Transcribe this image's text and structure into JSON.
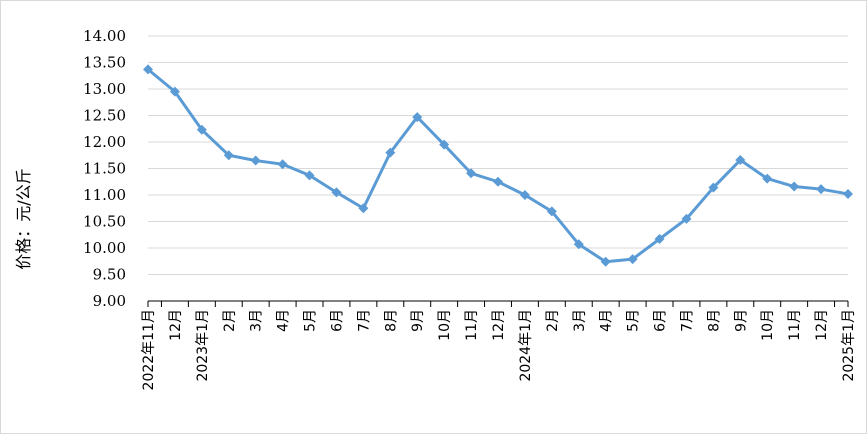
{
  "chart_data": {
    "type": "line",
    "title": "",
    "xlabel": "",
    "ylabel": "价格：元/公斤",
    "ylim": [
      9.0,
      14.0
    ],
    "yticks": [
      "9.00",
      "9.50",
      "10.00",
      "10.50",
      "11.00",
      "11.50",
      "12.00",
      "12.50",
      "13.00",
      "13.50",
      "14.00"
    ],
    "categories": [
      "2022年11月",
      "12月",
      "2023年1月",
      "2月",
      "3月",
      "4月",
      "5月",
      "6月",
      "7月",
      "8月",
      "9月",
      "10月",
      "11月",
      "12月",
      "2024年1月",
      "2月",
      "3月",
      "4月",
      "5月",
      "6月",
      "7月",
      "8月",
      "9月",
      "10月",
      "11月",
      "12月",
      "2025年1月"
    ],
    "series": [
      {
        "values": [
          13.37,
          12.95,
          12.23,
          11.75,
          11.65,
          11.58,
          11.37,
          11.05,
          10.75,
          11.8,
          12.47,
          11.95,
          11.41,
          11.25,
          11.0,
          10.69,
          10.07,
          9.74,
          9.79,
          10.17,
          10.55,
          11.14,
          11.66,
          11.31,
          11.16,
          11.11,
          11.02
        ],
        "color": "#5b9bd5",
        "marker": "diamond"
      }
    ],
    "grid": true,
    "legend": "none"
  }
}
